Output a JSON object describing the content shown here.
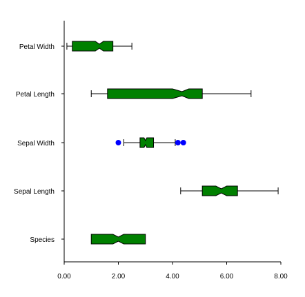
{
  "chart_data": {
    "type": "boxplot",
    "orientation": "horizontal",
    "title": "",
    "xlabel": "",
    "ylabel": "",
    "xlim": [
      0,
      8
    ],
    "x_ticks": [
      "0.00",
      "2.00",
      "4.00",
      "6.00",
      "8.00"
    ],
    "x_tick_values": [
      0,
      2,
      4,
      6,
      8
    ],
    "notched": true,
    "grid": false,
    "colors": {
      "box_fill": "#008000",
      "box_stroke": "#000000",
      "outlier": "#0000ff",
      "axis": "#000000"
    },
    "categories": [
      "Petal Width",
      "Petal Length",
      "Sepal Width",
      "Sepal Length",
      "Species"
    ],
    "boxes": [
      {
        "label": "Petal Width",
        "whisker_low": 0.1,
        "q1": 0.3,
        "median": 1.3,
        "q3": 1.8,
        "whisker_high": 2.5,
        "notch_low": 1.15,
        "notch_high": 1.45,
        "outliers": []
      },
      {
        "label": "Petal Length",
        "whisker_low": 1.0,
        "q1": 1.6,
        "median": 4.35,
        "q3": 5.1,
        "whisker_high": 6.9,
        "notch_low": 4.0,
        "notch_high": 4.6,
        "outliers": []
      },
      {
        "label": "Sepal Width",
        "whisker_low": 2.2,
        "q1": 2.8,
        "median": 3.0,
        "q3": 3.3,
        "whisker_high": 4.1,
        "notch_low": 2.95,
        "notch_high": 3.05,
        "outliers": [
          2.0,
          4.2,
          4.4
        ]
      },
      {
        "label": "Sepal Length",
        "whisker_low": 4.3,
        "q1": 5.1,
        "median": 5.8,
        "q3": 6.4,
        "whisker_high": 7.9,
        "notch_low": 5.6,
        "notch_high": 6.0,
        "outliers": []
      },
      {
        "label": "Species",
        "whisker_low": 1.0,
        "q1": 1.0,
        "median": 2.0,
        "q3": 3.0,
        "whisker_high": 3.0,
        "notch_low": 1.8,
        "notch_high": 2.2,
        "outliers": []
      }
    ]
  }
}
